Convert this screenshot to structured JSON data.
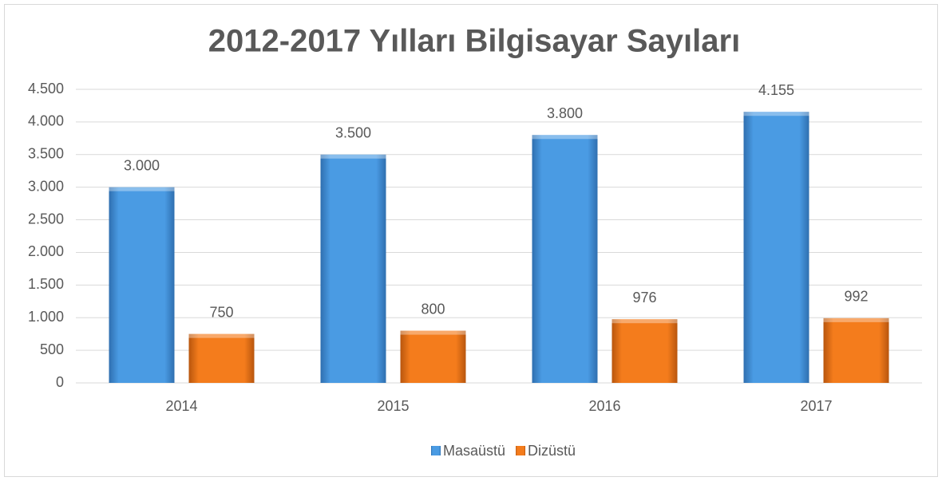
{
  "chart_data": {
    "type": "bar",
    "title": "2012-2017 Yılları Bilgisayar Sayıları",
    "categories": [
      "2014",
      "2015",
      "2016",
      "2017"
    ],
    "series": [
      {
        "name": "Masaüstü",
        "color": "#4a9be3",
        "values": [
          3000,
          3500,
          3800,
          4155
        ],
        "value_labels": [
          "3.000",
          "3.500",
          "3.800",
          "4.155"
        ]
      },
      {
        "name": "Dizüstü",
        "color": "#f47c1c",
        "values": [
          750,
          800,
          976,
          992
        ],
        "value_labels": [
          "750",
          "800",
          "976",
          "992"
        ]
      }
    ],
    "ylim": [
      0,
      4500
    ],
    "yticks": [
      0,
      500,
      {
        "value": 1000,
        "label": "1.000"
      },
      {
        "value": 1500,
        "label": "1.500"
      },
      {
        "value": 2000,
        "label": "2.000"
      },
      {
        "value": 2500,
        "label": "2.500"
      },
      {
        "value": 3000,
        "label": "3.000"
      },
      {
        "value": 3500,
        "label": "3.500"
      },
      {
        "value": 4000,
        "label": "4.000"
      },
      {
        "value": 4500,
        "label": "4.500"
      }
    ],
    "grid": true,
    "legend": "bottom"
  }
}
